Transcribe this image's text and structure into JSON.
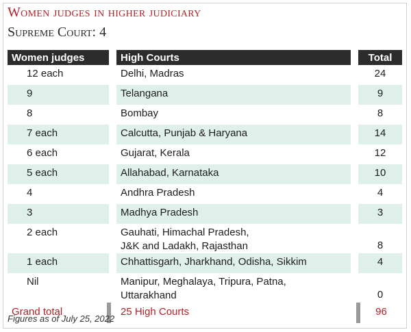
{
  "title": "Women judges in higher judiciary",
  "subtitle": "Supreme Court: 4",
  "table": {
    "headers": {
      "judges": "Women judges",
      "courts": "High Courts",
      "total": "Total"
    },
    "rows": [
      {
        "judges": "12 each",
        "courts": [
          "Delhi, Madras"
        ],
        "total": "24"
      },
      {
        "judges": "9",
        "courts": [
          "Telangana"
        ],
        "total": "9"
      },
      {
        "judges": "8",
        "courts": [
          "Bombay"
        ],
        "total": "8"
      },
      {
        "judges": "7 each",
        "courts": [
          "Calcutta, Punjab & Haryana"
        ],
        "total": "14"
      },
      {
        "judges": "6 each",
        "courts": [
          "Gujarat, Kerala"
        ],
        "total": "12"
      },
      {
        "judges": "5 each",
        "courts": [
          "Allahabad, Karnataka"
        ],
        "total": "10"
      },
      {
        "judges": "4",
        "courts": [
          "Andhra Pradesh"
        ],
        "total": "4"
      },
      {
        "judges": "3",
        "courts": [
          "Madhya Pradesh"
        ],
        "total": "3"
      },
      {
        "judges": "2 each",
        "courts": [
          "Gauhati, Himachal Pradesh,",
          "J&K and Ladakh, Rajasthan"
        ],
        "total": "8"
      },
      {
        "judges": "1 each",
        "courts": [
          "Chhattisgarh, Jharkhand, Odisha, Sikkim"
        ],
        "total": "4"
      },
      {
        "judges": "Nil",
        "courts": [
          "Manipur, Meghalaya, Tripura, Patna,",
          "Uttarakhand"
        ],
        "total": "0"
      }
    ],
    "grand_total": {
      "label": "Grand total",
      "courts": "25 High Courts",
      "total": "96"
    }
  },
  "footnote": "Figures as of July 25, 2022",
  "colors": {
    "accent": "#b2212a",
    "header_bg": "#2c2c2c",
    "row_shade": "#dff0ea"
  }
}
